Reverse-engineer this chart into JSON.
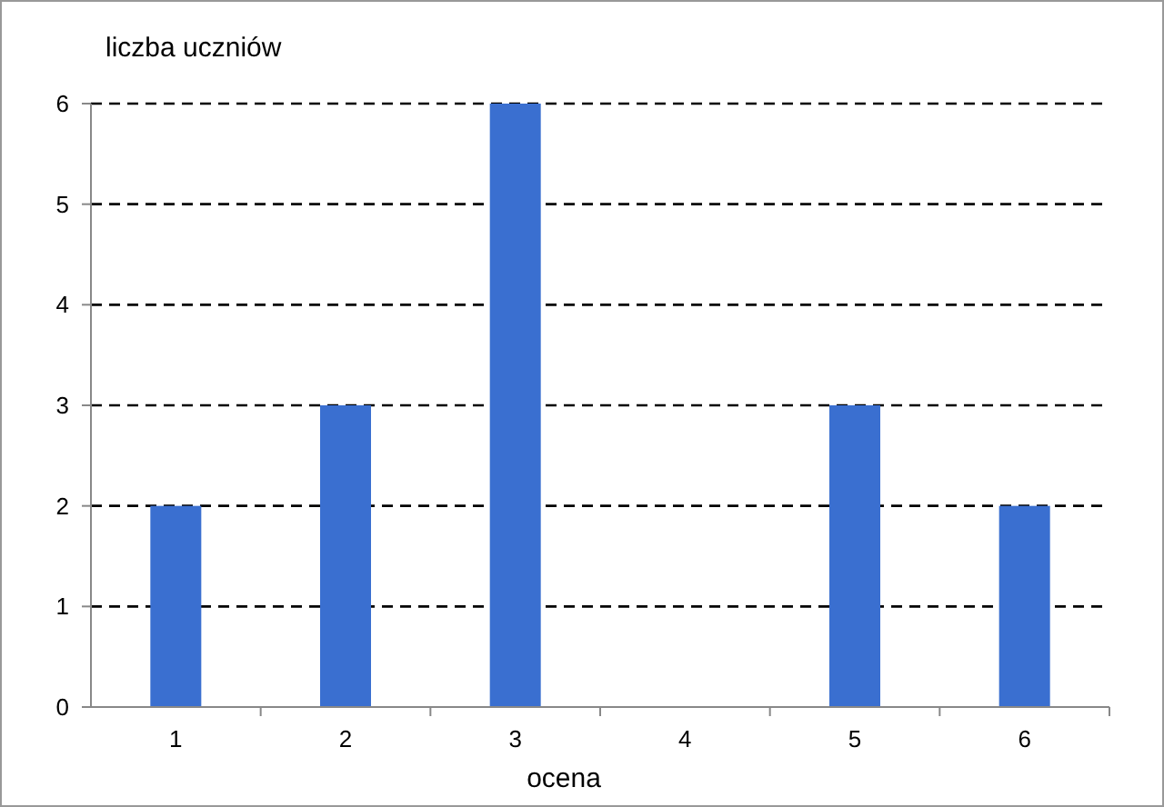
{
  "chart_data": {
    "type": "bar",
    "xlabel": "ocena",
    "ylabel": "liczba uczniów",
    "categories": [
      "1",
      "2",
      "3",
      "4",
      "5",
      "6"
    ],
    "values": [
      2,
      3,
      6,
      0,
      3,
      2
    ],
    "color": "#3a6fd0",
    "ylim": [
      0,
      6
    ],
    "yticks": [
      0,
      1,
      2,
      3,
      4,
      5,
      6
    ],
    "grid": "y"
  }
}
